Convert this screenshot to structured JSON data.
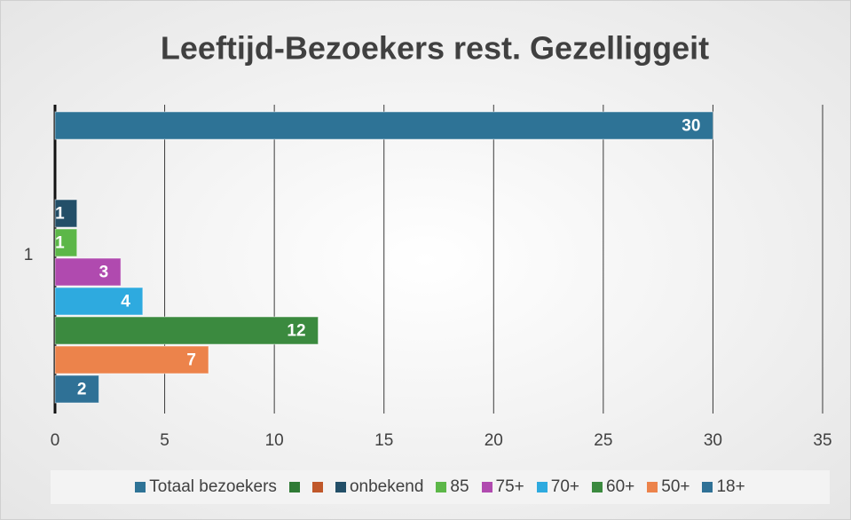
{
  "chart_data": {
    "type": "bar",
    "orientation": "horizontal",
    "title": "Leeftijd-Bezoekers rest. Gezelliggeit",
    "categories": [
      "1"
    ],
    "series": [
      {
        "name": "Totaal bezoekers",
        "color": "#2e7396",
        "values": [
          30
        ]
      },
      {
        "name": null,
        "color": "#2f7a35",
        "values": [
          null
        ]
      },
      {
        "name": null,
        "color": "#c0582a",
        "values": [
          null
        ]
      },
      {
        "name": "onbekend",
        "color": "#234f68",
        "values": [
          1
        ]
      },
      {
        "name": "85",
        "color": "#5cb748",
        "values": [
          1
        ]
      },
      {
        "name": "75+",
        "color": "#b04aaf",
        "values": [
          3
        ]
      },
      {
        "name": "70+",
        "color": "#2eaadf",
        "values": [
          4
        ]
      },
      {
        "name": "60+",
        "color": "#3b8a3f",
        "values": [
          12
        ]
      },
      {
        "name": "50+",
        "color": "#ec834b",
        "values": [
          7
        ]
      },
      {
        "name": "18+",
        "color": "#2f7196",
        "values": [
          2
        ]
      }
    ],
    "xlim": [
      0,
      35
    ],
    "xticks": [
      0,
      5,
      10,
      15,
      20,
      25,
      30,
      35
    ],
    "grid": true,
    "legend": "bottom"
  }
}
